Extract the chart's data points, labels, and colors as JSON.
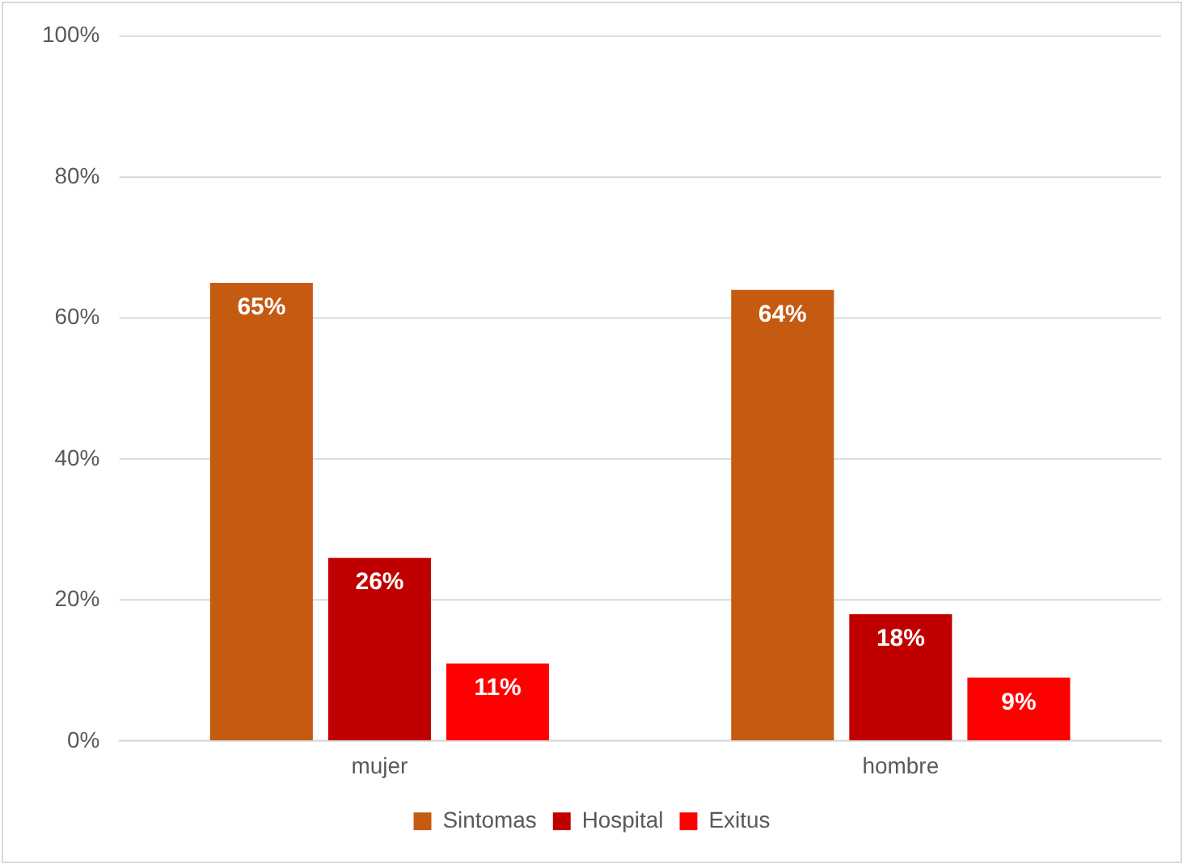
{
  "chart_data": {
    "type": "bar",
    "categories": [
      "mujer",
      "hombre"
    ],
    "series": [
      {
        "name": "Sintomas",
        "color": "#c55a11",
        "values": [
          65,
          64
        ],
        "value_labels": [
          "65%",
          "64%"
        ]
      },
      {
        "name": "Hospital",
        "color": "#c00000",
        "values": [
          26,
          18
        ],
        "value_labels": [
          "26%",
          "18%"
        ]
      },
      {
        "name": "Exitus",
        "color": "#ff0000",
        "values": [
          11,
          9
        ],
        "value_labels": [
          "11%",
          "9%"
        ]
      }
    ],
    "ylim": [
      0,
      100
    ],
    "yticks": [
      {
        "value": 0,
        "label": "0%"
      },
      {
        "value": 20,
        "label": "20%"
      },
      {
        "value": 40,
        "label": "40%"
      },
      {
        "value": 60,
        "label": "60%"
      },
      {
        "value": 80,
        "label": "80%"
      },
      {
        "value": 100,
        "label": "100%"
      }
    ],
    "grid": "y",
    "legend": "bottom"
  }
}
